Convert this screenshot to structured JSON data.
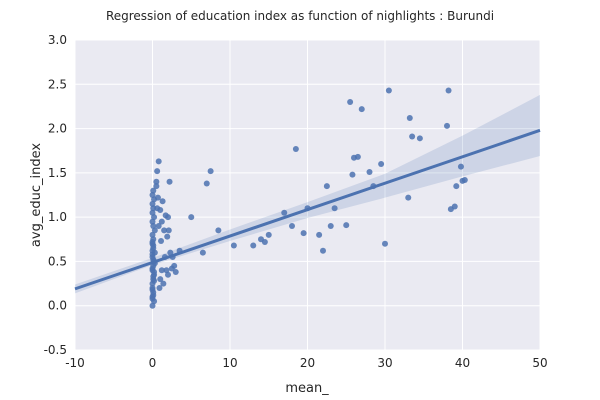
{
  "chart_data": {
    "type": "scatter",
    "title": "Regression of education index as function of nighlights : Burundi",
    "xlabel": "mean_",
    "ylabel": "avg_educ_index",
    "xlim": [
      -10,
      50
    ],
    "ylim": [
      -0.5,
      3.0
    ],
    "xticks": [
      "-10",
      "0",
      "10",
      "20",
      "30",
      "40",
      "50"
    ],
    "yticks": [
      "-0.5",
      "0.0",
      "0.5",
      "1.0",
      "1.5",
      "2.0",
      "2.5",
      "3.0"
    ],
    "grid": true,
    "colors": {
      "background": "#eaeaf2",
      "grid": "#ffffff",
      "points": "#4c72b0",
      "line": "#4c72b0",
      "band": "#4c72b0"
    },
    "regression": {
      "x": [
        -10,
        50
      ],
      "y": [
        0.19,
        1.98
      ],
      "band_x": [
        -10,
        0,
        10,
        20,
        30,
        40,
        50
      ],
      "band_lower": [
        0.14,
        0.46,
        0.73,
        0.99,
        1.22,
        1.46,
        1.69
      ],
      "band_upper": [
        0.24,
        0.54,
        0.86,
        1.17,
        1.49,
        1.92,
        2.38
      ]
    },
    "series": [
      {
        "x": [
          0.0,
          0.1,
          0.0,
          0.2,
          0.1,
          0.0,
          0.3,
          0.0,
          0.1,
          0.2,
          0.0,
          0.1,
          0.0,
          0.2,
          0.0,
          0.1,
          0.0,
          0.3,
          0.1,
          0.0,
          0.2,
          0.0,
          0.1,
          0.0,
          0.2,
          0.0,
          0.1,
          0.0,
          0.3,
          0.1,
          0.0,
          0.2,
          0.0,
          0.1,
          0.0,
          0.2,
          0.0,
          0.1,
          0.0,
          0.1,
          0.5,
          0.6,
          0.8,
          0.5,
          1.0,
          1.2,
          0.7,
          1.5,
          1.8,
          2.0,
          1.1,
          0.9,
          1.6,
          2.2,
          1.3,
          2.0,
          2.5,
          3.0,
          2.8,
          3.5,
          2.1,
          1.7,
          2.3,
          1.4,
          0.6,
          1.9,
          2.6,
          1.0,
          0.8,
          1.2,
          5.0,
          6.5,
          7.0,
          7.5,
          8.5,
          10.5,
          13.0,
          14.0,
          14.5,
          15.0,
          17.0,
          18.0,
          18.5,
          19.5,
          20.0,
          21.5,
          22.0,
          22.5,
          23.0,
          23.5,
          25.0,
          25.5,
          25.8,
          26.0,
          26.5,
          27.0,
          28.0,
          28.5,
          29.5,
          30.0,
          30.5,
          33.0,
          33.2,
          33.5,
          34.5,
          38.0,
          38.2,
          38.5,
          39.0,
          39.2,
          39.8,
          40.0,
          40.3
        ],
        "y": [
          0.2,
          0.3,
          0.4,
          0.5,
          0.45,
          0.55,
          0.6,
          0.7,
          0.65,
          0.35,
          0.25,
          0.15,
          0.1,
          0.05,
          0.0,
          0.75,
          0.8,
          0.85,
          0.9,
          0.95,
          1.0,
          1.05,
          1.1,
          1.15,
          1.2,
          1.25,
          1.3,
          0.42,
          0.48,
          0.52,
          0.58,
          0.38,
          0.62,
          0.68,
          0.72,
          0.28,
          0.18,
          0.12,
          0.08,
          0.33,
          1.4,
          1.52,
          1.63,
          1.35,
          1.08,
          0.95,
          1.22,
          0.85,
          0.4,
          0.35,
          0.73,
          0.2,
          0.55,
          1.4,
          1.18,
          1.0,
          0.42,
          0.38,
          0.45,
          0.62,
          0.85,
          1.02,
          0.6,
          0.25,
          1.1,
          0.78,
          0.55,
          0.3,
          0.9,
          0.4,
          1.0,
          0.6,
          1.38,
          1.52,
          0.85,
          0.68,
          0.68,
          0.75,
          0.72,
          0.8,
          1.05,
          0.9,
          1.77,
          0.82,
          1.1,
          0.8,
          0.62,
          1.35,
          0.9,
          1.1,
          0.91,
          2.3,
          1.48,
          1.67,
          1.68,
          2.22,
          1.51,
          1.35,
          1.6,
          0.7,
          2.43,
          1.22,
          2.12,
          1.91,
          1.89,
          2.03,
          2.43,
          1.09,
          1.12,
          1.35,
          1.57,
          1.41,
          1.42
        ]
      }
    ]
  }
}
